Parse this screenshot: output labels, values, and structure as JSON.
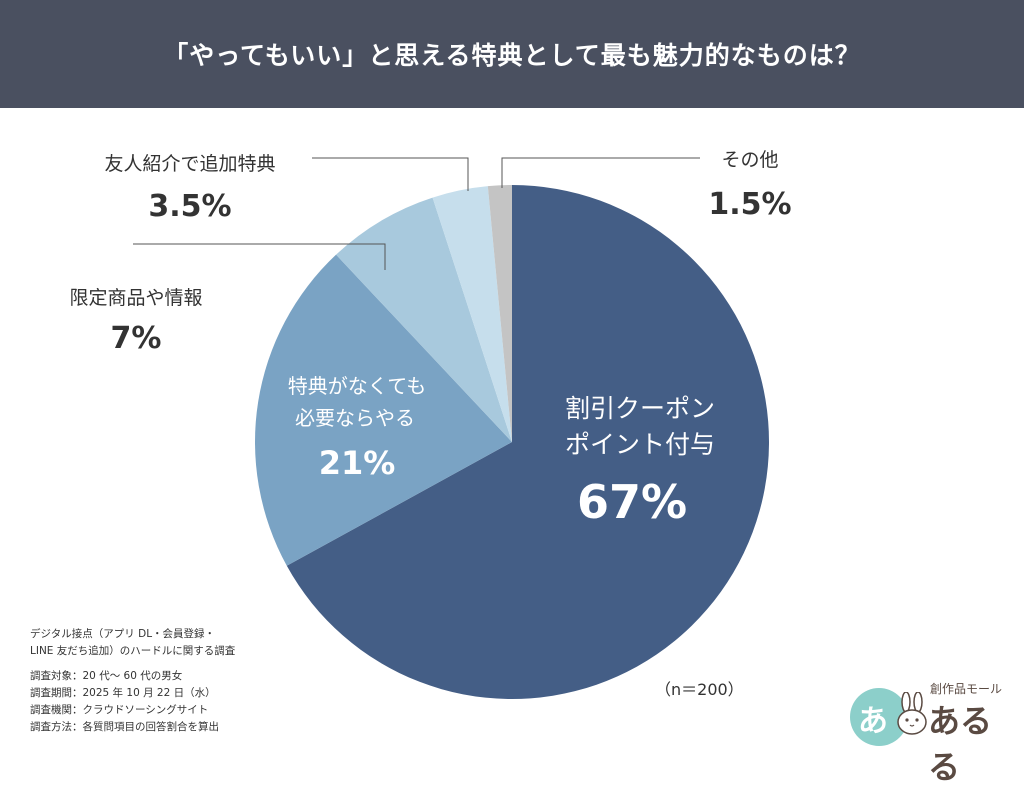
{
  "header": {
    "title": "「やってもいい」と思える特典として最も魅力的なものは？"
  },
  "chart_data": {
    "type": "pie",
    "title": "「やってもいい」と思える特典として最も魅力的なものは？",
    "slices": [
      {
        "name_lines": [
          "割引クーポン",
          "ポイント付与"
        ],
        "value": 67,
        "value_label": "67%",
        "color": "#445e86"
      },
      {
        "name_lines": [
          "特典がなくても",
          "必要ならやる"
        ],
        "value": 21,
        "value_label": "21%",
        "color": "#7aa3c4"
      },
      {
        "name_lines": [
          "限定商品や情報"
        ],
        "value": 7,
        "value_label": "7%",
        "color": "#a8c9dd"
      },
      {
        "name_lines": [
          "友人紹介で追加特典"
        ],
        "value": 3.5,
        "value_label": "3.5%",
        "color": "#c6deec"
      },
      {
        "name_lines": [
          "その他"
        ],
        "value": 1.5,
        "value_label": "1.5%",
        "color": "#c4c4c4"
      }
    ]
  },
  "sample_size": "（n＝200）",
  "footnote": {
    "survey_title_lines": [
      "デジタル接点（アプリ DL・会員登録・",
      "LINE 友だち追加）のハードルに関する調査"
    ],
    "details": [
      "調査対象：20 代〜 60 代の男女",
      "調査期間：2025 年 10 月 22 日（水）",
      "調査機関：クラウドソーシングサイト",
      "調査方法：各質問項目の回答割合を算出"
    ]
  },
  "logo": {
    "mark": "あ",
    "tagline": "創作品モール",
    "brand": "あるる"
  }
}
